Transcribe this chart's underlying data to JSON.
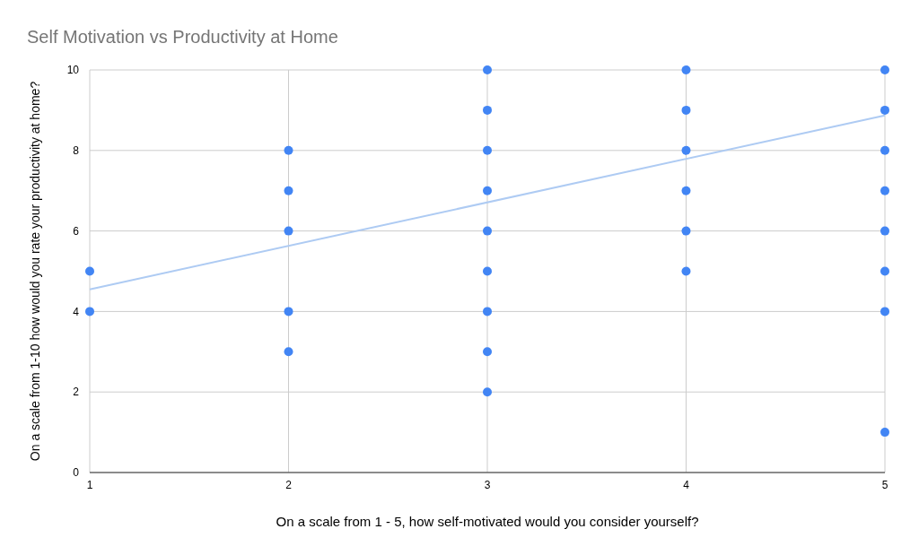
{
  "chart_data": {
    "type": "scatter",
    "title": "Self Motivation vs Productivity at Home",
    "xlabel": "On a scale from 1 - 5, how self-motivated would you consider yourself?",
    "ylabel": "On a scale from 1-10 how would you rate your productivity at home?",
    "xlim": [
      1,
      5
    ],
    "xticks": [
      1,
      2,
      3,
      4,
      5
    ],
    "ylim": [
      0,
      10
    ],
    "yticks": [
      0,
      2,
      4,
      6,
      8,
      10
    ],
    "grid": true,
    "series": [
      {
        "marker": "circle",
        "color": "#4285f4",
        "x": [
          1,
          1,
          2,
          2,
          2,
          2,
          2,
          3,
          3,
          3,
          3,
          3,
          3,
          3,
          3,
          3,
          4,
          4,
          4,
          4,
          4,
          4,
          5,
          5,
          5,
          5,
          5,
          5,
          5,
          5
        ],
        "values": [
          5,
          4,
          8,
          7,
          6,
          4,
          3,
          10,
          9,
          8,
          7,
          6,
          5,
          4,
          3,
          2,
          10,
          9,
          8,
          7,
          6,
          5,
          10,
          9,
          8,
          7,
          6,
          5,
          4,
          1
        ]
      },
      {
        "type": "line",
        "color": "#aecbf3",
        "x": [
          1,
          5
        ],
        "values": [
          4.55,
          8.87
        ]
      }
    ]
  }
}
